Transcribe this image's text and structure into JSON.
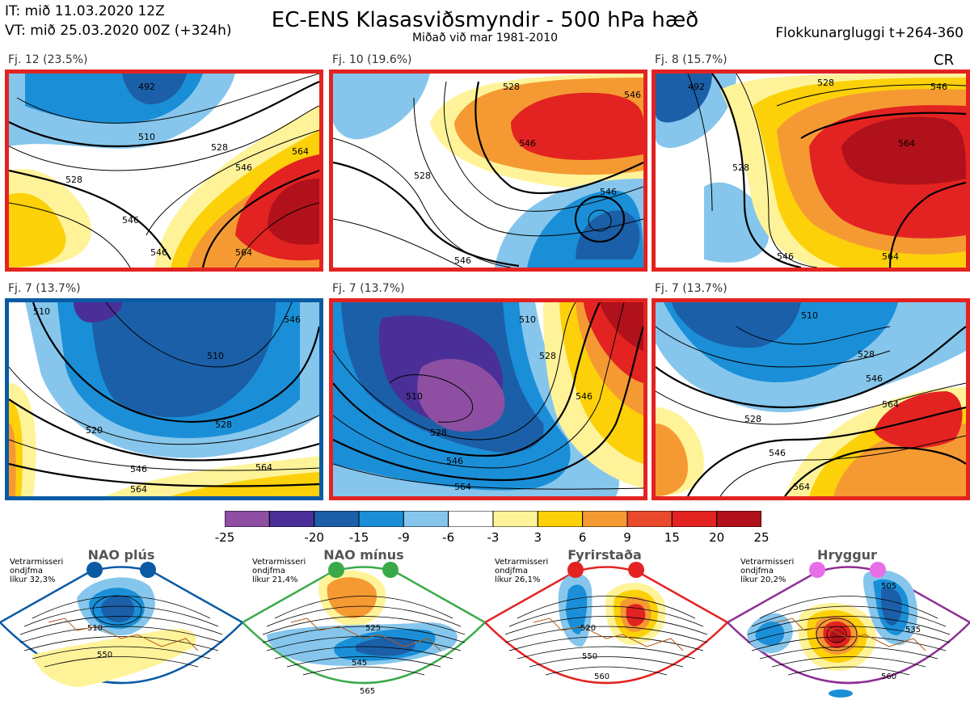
{
  "header": {
    "it_line": "IT: mið 11.03.2020 12Z",
    "vt_line": "VT: mið 25.03.2020 00Z  (+324h)",
    "title": "EC-ENS Klasasviðsmyndir - 500 hPa hæð",
    "subtitle": "Miðað við mar 1981-2010",
    "window": "Flokkunargluggi t+264-360",
    "cr": "CR"
  },
  "panels": [
    {
      "label": "Fj. 12 (23.5%)",
      "border_color": "#e32321",
      "contours": [
        "492",
        "510",
        "528",
        "546",
        "564",
        "528",
        "546",
        "546",
        "564"
      ]
    },
    {
      "label": "Fj. 10 (19.6%)",
      "border_color": "#e32321",
      "contours": [
        "528",
        "546",
        "528",
        "546",
        "546",
        "546"
      ]
    },
    {
      "label": "Fj. 8 (15.7%)",
      "border_color": "#e32321",
      "contours": [
        "492",
        "528",
        "546",
        "528",
        "564",
        "546",
        "564"
      ]
    },
    {
      "label": "Fj. 7 (13.7%)",
      "border_color": "#0a5aa4",
      "contours": [
        "510",
        "510",
        "520",
        "528",
        "546",
        "546",
        "564",
        "564"
      ]
    },
    {
      "label": "Fj. 7 (13.7%)",
      "border_color": "#e32321",
      "contours": [
        "510",
        "528",
        "546",
        "510",
        "528",
        "546",
        "564"
      ]
    },
    {
      "label": "Fj. 7 (13.7%)",
      "border_color": "#e32321",
      "contours": [
        "510",
        "528",
        "546",
        "528",
        "564",
        "546",
        "564"
      ]
    }
  ],
  "colorbar": {
    "colors": [
      "#8e4fa3",
      "#4b2f98",
      "#1b5fa8",
      "#1a8fd8",
      "#86c6ec",
      "#ffffff",
      "#fff39a",
      "#fdd10a",
      "#f59a33",
      "#ea4a2c",
      "#e32321",
      "#b0111a"
    ],
    "labels": [
      "-25",
      "-20",
      "-15",
      "-9",
      "-6",
      "-3",
      "3",
      "6",
      "9",
      "15",
      "20",
      "25"
    ]
  },
  "regimes": [
    {
      "name": "NAO plús",
      "note": [
        "Vetrarmisseri",
        "ondjfma",
        "líkur 32,3%"
      ],
      "color": "#0a5aa4",
      "dot_color": "#0a5aa4",
      "contours": [
        "510",
        "550"
      ]
    },
    {
      "name": "NAO mínus",
      "note": [
        "Vetrarmisseri",
        "ondjfma",
        "líkur 21,4%"
      ],
      "color": "#3aaa49",
      "dot_color": "#3aaa49",
      "contours": [
        "525",
        "545",
        "565"
      ]
    },
    {
      "name": "Fyrirstaða",
      "note": [
        "Vetrarmisseri",
        "ondjfma",
        "líkur 26,1%"
      ],
      "color": "#e32321",
      "dot_color": "#e32321",
      "contours": [
        "520",
        "550",
        "560"
      ]
    },
    {
      "name": "Hryggur",
      "note": [
        "Vetrarmisseri",
        "ondjfma",
        "líkur 20,2%"
      ],
      "color": "#8d2f94",
      "dot_color": "#e86ee8",
      "contours": [
        "505",
        "535",
        "560"
      ]
    }
  ]
}
